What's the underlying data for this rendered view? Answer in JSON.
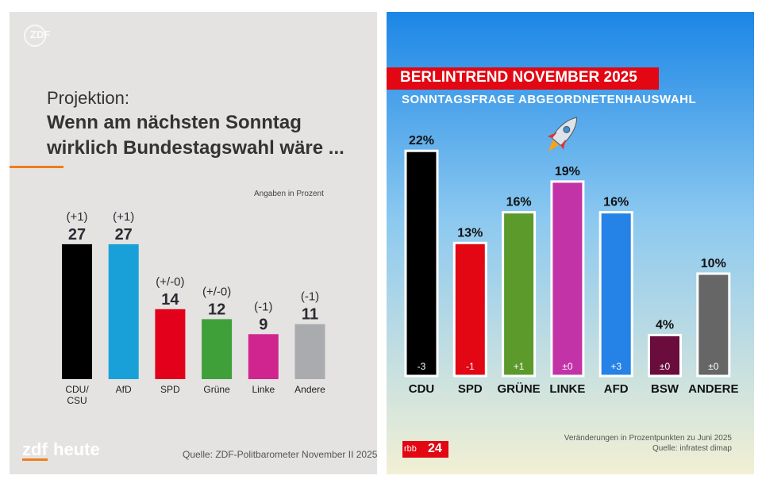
{
  "chart_data": [
    {
      "type": "bar",
      "corner_logo": "ZDF",
      "header": "Projektion:",
      "title": "Wenn am nächsten Sonntag wirklich Bundestagswahl wäre ...",
      "note": "Angaben in Prozent",
      "categories": [
        "CDU/ CSU",
        "AfD",
        "SPD",
        "Grüne",
        "Linke",
        "Andere"
      ],
      "values": [
        27,
        27,
        14,
        12,
        9,
        11
      ],
      "change_labels": [
        "(+1)",
        "(+1)",
        "(+/-0)",
        "(+/-0)",
        "(-1)",
        "(-1)"
      ],
      "colors": [
        "#000000",
        "#1aa0d8",
        "#e3001b",
        "#3fa03a",
        "#d0258f",
        "#a9abae"
      ],
      "logo": [
        "zdf",
        "heute"
      ],
      "source": "Quelle: ZDF-Politbarometer November II 2025"
    },
    {
      "type": "bar",
      "title": "BERLINTREND NOVEMBER 2025",
      "subtitle": "SONNTAGSFRAGE ABGEORDNETENHAUSWAHL",
      "categories": [
        "CDU",
        "SPD",
        "GRÜNE",
        "LINKE",
        "AFD",
        "BSW",
        "ANDERE"
      ],
      "values": [
        22,
        13,
        16,
        19,
        16,
        4,
        10
      ],
      "value_labels": [
        "22%",
        "13%",
        "16%",
        "19%",
        "16%",
        "4%",
        "10%"
      ],
      "change_labels": [
        "-3",
        "-1",
        "+1",
        "±0",
        "+3",
        "±0",
        "±0"
      ],
      "colors": [
        "#000000",
        "#e30613",
        "#5b9a2b",
        "#c233a8",
        "#2582e6",
        "#6a0d3d",
        "#666666"
      ],
      "note": "Veränderungen in Prozentpunkten zu Juni 2025",
      "source": "Quelle: infratest dimap",
      "logo": [
        "rbb",
        "24"
      ]
    }
  ]
}
